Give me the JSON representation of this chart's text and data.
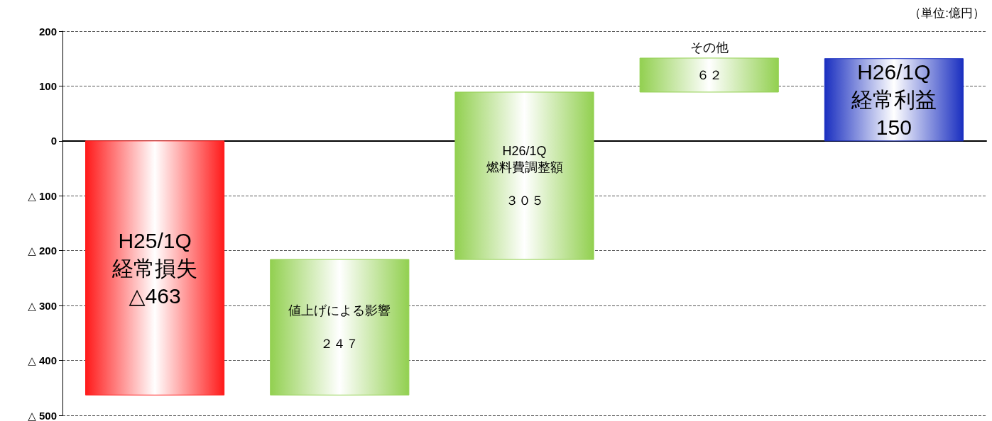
{
  "chart_data": {
    "type": "bar",
    "categories": [
      "H25/1Q\n経常損失",
      "値上げによる影響",
      "H26/1Q\n燃料費調整額",
      "その他",
      "H26/1Q\n経常利益"
    ],
    "values": [
      -463,
      247,
      305,
      62,
      150
    ],
    "base": [
      0,
      -463,
      -216,
      89,
      0
    ],
    "colors": [
      "#ff1a1a",
      "#92d050",
      "#92d050",
      "#92d050",
      "#1a2fc0"
    ],
    "value_labels": [
      "△463",
      "２４７",
      "３０５",
      "６２",
      "150"
    ],
    "ylim": [
      -500,
      200
    ],
    "yticks": [
      200,
      100,
      0,
      {
        "value": -100,
        "label": "△ 100"
      },
      {
        "value": -200,
        "label": "△ 200"
      },
      {
        "value": -300,
        "label": "△ 300"
      },
      {
        "value": -400,
        "label": "△ 400"
      },
      {
        "value": -500,
        "label": "△ 500"
      }
    ],
    "grid": "y",
    "tick_labels": "y",
    "annotations": [
      "（単位:億円）"
    ]
  }
}
